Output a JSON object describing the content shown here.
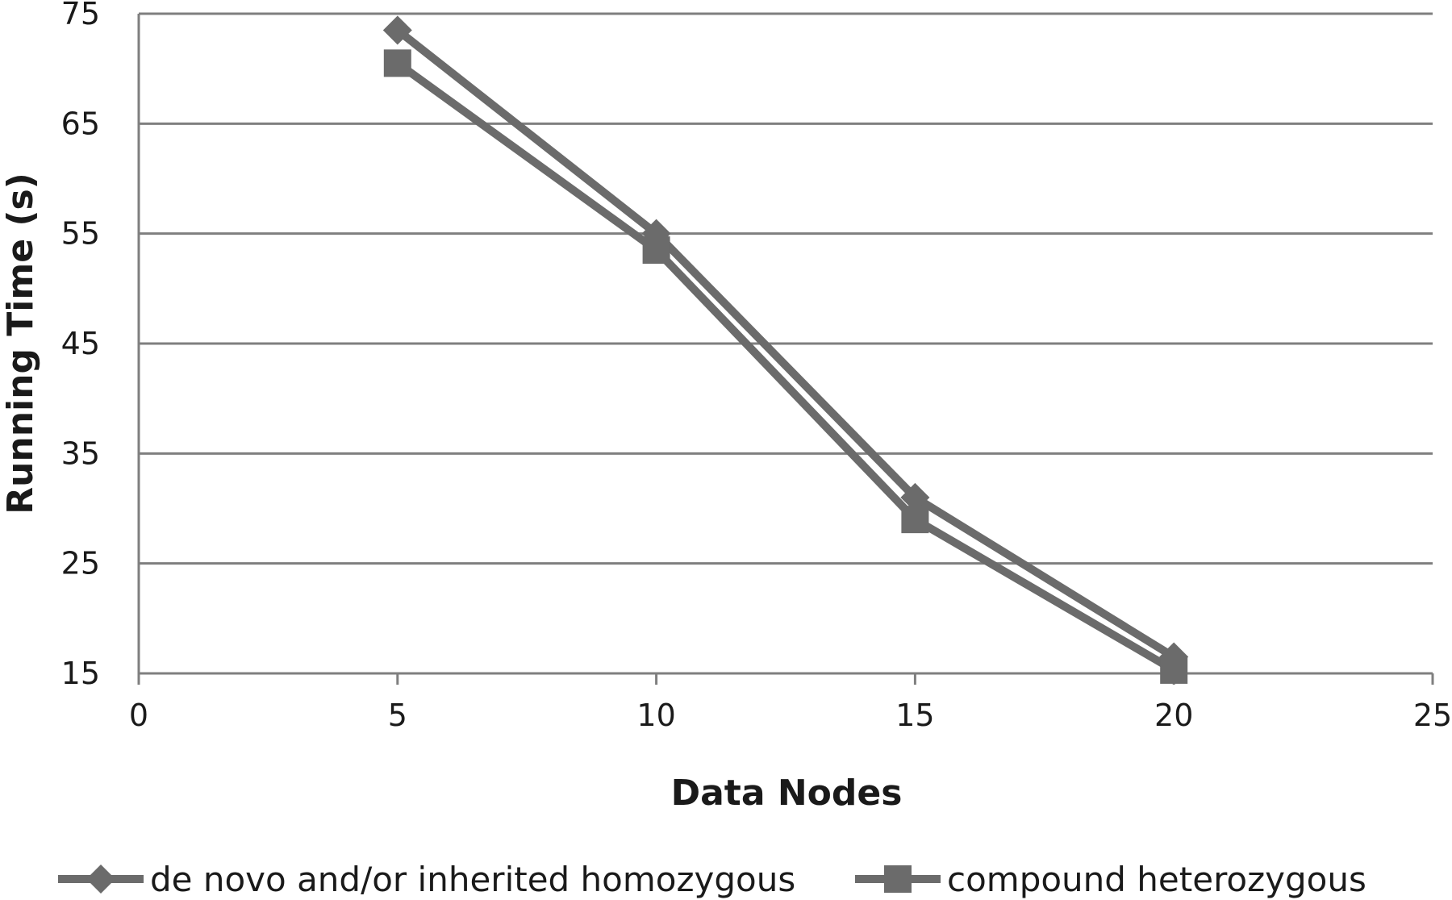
{
  "chart_data": {
    "type": "line",
    "title": "",
    "xlabel": "Data Nodes",
    "ylabel": "Running Time (s)",
    "xlim": [
      0,
      25
    ],
    "ylim": [
      15,
      75
    ],
    "x_ticks": [
      "0",
      "5",
      "10",
      "15",
      "20",
      "25"
    ],
    "y_ticks": [
      "15",
      "25",
      "35",
      "45",
      "55",
      "65",
      "75"
    ],
    "grid": "horizontal",
    "legend_position": "bottom",
    "series_color": "#6b6b6b",
    "series": [
      {
        "name": "de novo and/or inherited homozygous",
        "marker": "diamond",
        "x": [
          5,
          10,
          15,
          20
        ],
        "y": [
          73.5,
          55,
          31,
          16.5
        ]
      },
      {
        "name": "compound heterozygous",
        "marker": "square",
        "x": [
          5,
          10,
          15,
          20
        ],
        "y": [
          70.5,
          53.5,
          29,
          15.3
        ]
      }
    ]
  }
}
